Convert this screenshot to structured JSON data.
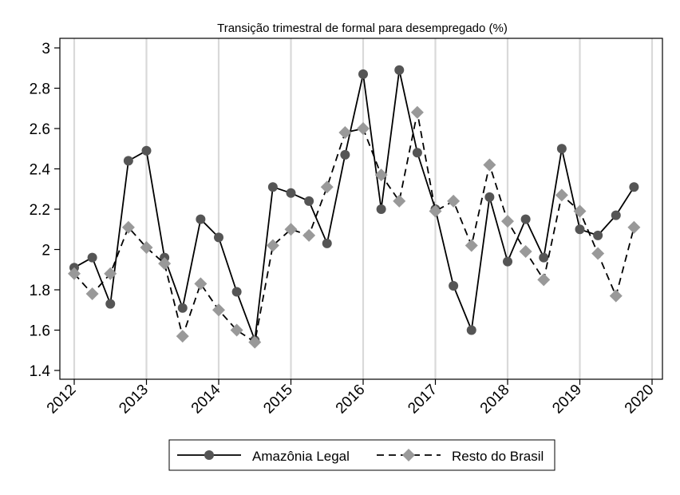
{
  "chart_data": {
    "type": "line",
    "title": "Transição trimestral de formal para desempregado (%)",
    "xlabel": "",
    "ylabel": "",
    "xlim": [
      2012,
      2020
    ],
    "ylim": [
      1.35,
      3.05
    ],
    "x_ticks": [
      "2012",
      "2013",
      "2014",
      "2015",
      "2016",
      "2017",
      "2018",
      "2019",
      "2020"
    ],
    "y_ticks": [
      "1.4",
      "1.6",
      "1.8",
      "2",
      "2.2",
      "2.4",
      "2.6",
      "2.8",
      "3"
    ],
    "grid": "vertical",
    "legend_position": "bottom",
    "x": [
      2012.0,
      2012.25,
      2012.5,
      2012.75,
      2013.0,
      2013.25,
      2013.5,
      2013.75,
      2014.0,
      2014.25,
      2014.5,
      2014.75,
      2015.0,
      2015.25,
      2015.5,
      2015.75,
      2016.0,
      2016.25,
      2016.5,
      2016.75,
      2017.0,
      2017.25,
      2017.5,
      2017.75,
      2018.0,
      2018.25,
      2018.5,
      2018.75,
      2019.0,
      2019.25,
      2019.5,
      2019.75
    ],
    "series": [
      {
        "name": "Amazônia Legal",
        "color": "#000000",
        "marker_color": "#555555",
        "marker": "circle",
        "dash": "solid",
        "values": [
          1.91,
          1.96,
          1.73,
          2.44,
          2.49,
          1.96,
          1.71,
          2.15,
          2.06,
          1.79,
          1.55,
          2.31,
          2.28,
          2.24,
          2.03,
          2.47,
          2.87,
          2.2,
          2.89,
          2.48,
          2.2,
          1.82,
          1.6,
          2.26,
          1.94,
          2.15,
          1.96,
          2.5,
          2.1,
          2.07,
          2.17,
          2.31
        ]
      },
      {
        "name": "Resto do Brasil",
        "color": "#000000",
        "marker_color": "#999999",
        "marker": "diamond",
        "dash": "dashed",
        "values": [
          1.88,
          1.78,
          1.88,
          2.11,
          2.01,
          1.93,
          1.57,
          1.83,
          1.7,
          1.6,
          1.54,
          2.02,
          2.1,
          2.07,
          2.31,
          2.58,
          2.6,
          2.37,
          2.24,
          2.68,
          2.19,
          2.24,
          2.02,
          2.42,
          2.14,
          1.99,
          1.85,
          2.27,
          2.19,
          1.98,
          1.77,
          2.11
        ]
      }
    ]
  }
}
